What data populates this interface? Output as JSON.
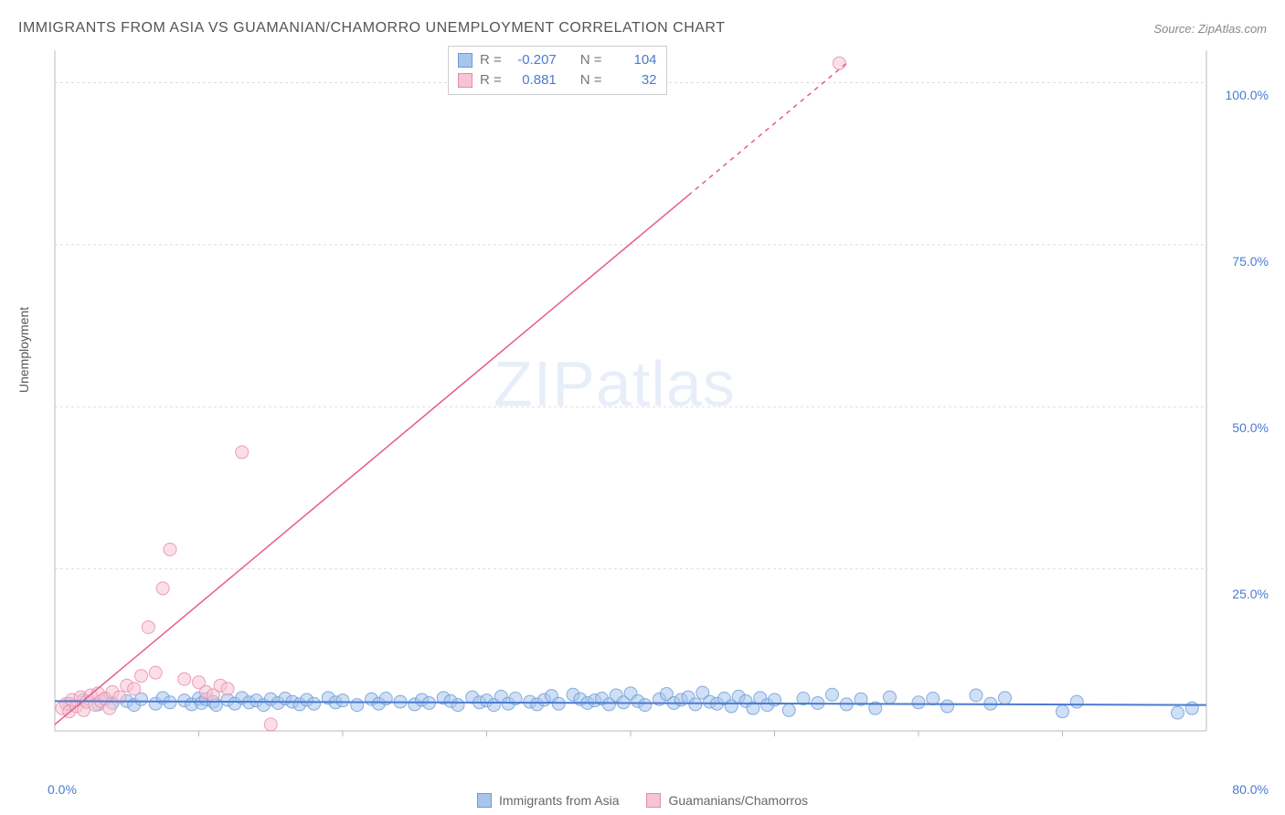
{
  "title": "IMMIGRANTS FROM ASIA VS GUAMANIAN/CHAMORRO UNEMPLOYMENT CORRELATION CHART",
  "source": "Source: ZipAtlas.com",
  "ylabel": "Unemployment",
  "watermark_zip": "ZIP",
  "watermark_atlas": "atlas",
  "chart": {
    "type": "scatter",
    "xlim": [
      0,
      80
    ],
    "ylim": [
      0,
      105
    ],
    "x_ticks": [
      0,
      80
    ],
    "x_tick_labels": [
      "0.0%",
      "80.0%"
    ],
    "y_ticks": [
      25,
      50,
      75,
      100
    ],
    "y_tick_labels": [
      "25.0%",
      "50.0%",
      "75.0%",
      "100.0%"
    ],
    "minor_x_ticks": [
      10,
      20,
      30,
      40,
      50,
      60,
      70
    ],
    "background_color": "#ffffff",
    "grid_color": "#dddddd",
    "axis_color": "#bbbbbb",
    "tick_label_color": "#4a7bd0",
    "series": [
      {
        "name": "Immigrants from Asia",
        "label": "Immigrants from Asia",
        "color_fill": "#a8c5ec",
        "color_stroke": "#6b9bd8",
        "marker_radius": 7,
        "marker_opacity": 0.55,
        "trend": {
          "x1": 0,
          "y1": 4.6,
          "x2": 80,
          "y2": 4.0,
          "color": "#4a7bd0",
          "width": 2
        },
        "R": "-0.207",
        "N": "104",
        "points": [
          [
            1,
            4.2
          ],
          [
            2,
            4.8
          ],
          [
            3,
            4.1
          ],
          [
            3.5,
            5.0
          ],
          [
            4,
            4.3
          ],
          [
            5,
            4.6
          ],
          [
            5.5,
            4.0
          ],
          [
            6,
            4.9
          ],
          [
            7,
            4.2
          ],
          [
            7.5,
            5.1
          ],
          [
            8,
            4.4
          ],
          [
            9,
            4.7
          ],
          [
            9.5,
            4.1
          ],
          [
            10,
            5.0
          ],
          [
            10.2,
            4.3
          ],
          [
            10.5,
            4.9
          ],
          [
            11,
            4.5
          ],
          [
            11.2,
            4.0
          ],
          [
            12,
            4.8
          ],
          [
            12.5,
            4.2
          ],
          [
            13,
            5.1
          ],
          [
            13.5,
            4.4
          ],
          [
            14,
            4.7
          ],
          [
            14.5,
            4.0
          ],
          [
            15,
            4.9
          ],
          [
            15.5,
            4.3
          ],
          [
            16,
            5.0
          ],
          [
            16.5,
            4.5
          ],
          [
            17,
            4.1
          ],
          [
            17.5,
            4.8
          ],
          [
            18,
            4.2
          ],
          [
            19,
            5.1
          ],
          [
            19.5,
            4.4
          ],
          [
            20,
            4.7
          ],
          [
            21,
            4.0
          ],
          [
            22,
            4.9
          ],
          [
            22.5,
            4.2
          ],
          [
            23,
            5.0
          ],
          [
            24,
            4.5
          ],
          [
            25,
            4.1
          ],
          [
            25.5,
            4.8
          ],
          [
            26,
            4.3
          ],
          [
            27,
            5.1
          ],
          [
            27.5,
            4.6
          ],
          [
            28,
            4.0
          ],
          [
            29,
            5.2
          ],
          [
            29.5,
            4.4
          ],
          [
            30,
            4.7
          ],
          [
            30.5,
            4.0
          ],
          [
            31,
            5.3
          ],
          [
            31.5,
            4.2
          ],
          [
            32,
            5.0
          ],
          [
            33,
            4.5
          ],
          [
            33.5,
            4.1
          ],
          [
            34,
            4.8
          ],
          [
            34.5,
            5.4
          ],
          [
            35,
            4.2
          ],
          [
            36,
            5.6
          ],
          [
            36.5,
            4.9
          ],
          [
            37,
            4.3
          ],
          [
            37.5,
            4.7
          ],
          [
            38,
            5.0
          ],
          [
            38.5,
            4.1
          ],
          [
            39,
            5.5
          ],
          [
            39.5,
            4.4
          ],
          [
            40,
            5.8
          ],
          [
            40.5,
            4.6
          ],
          [
            41,
            4.0
          ],
          [
            42,
            4.9
          ],
          [
            42.5,
            5.7
          ],
          [
            43,
            4.3
          ],
          [
            43.5,
            4.8
          ],
          [
            44,
            5.2
          ],
          [
            44.5,
            4.1
          ],
          [
            45,
            5.9
          ],
          [
            45.5,
            4.5
          ],
          [
            46,
            4.2
          ],
          [
            46.5,
            5.0
          ],
          [
            47,
            3.8
          ],
          [
            47.5,
            5.3
          ],
          [
            48,
            4.6
          ],
          [
            48.5,
            3.5
          ],
          [
            49,
            5.1
          ],
          [
            49.5,
            4.0
          ],
          [
            50,
            4.8
          ],
          [
            51,
            3.2
          ],
          [
            52,
            5.0
          ],
          [
            53,
            4.3
          ],
          [
            54,
            5.6
          ],
          [
            55,
            4.1
          ],
          [
            56,
            4.9
          ],
          [
            57,
            3.5
          ],
          [
            58,
            5.2
          ],
          [
            60,
            4.4
          ],
          [
            61,
            5.0
          ],
          [
            62,
            3.8
          ],
          [
            64,
            5.5
          ],
          [
            65,
            4.2
          ],
          [
            66,
            5.1
          ],
          [
            70,
            3.0
          ],
          [
            71,
            4.5
          ],
          [
            78,
            2.8
          ],
          [
            79,
            3.5
          ]
        ]
      },
      {
        "name": "Guamanians/Chamorros",
        "label": "Guamanians/Chamorros",
        "color_fill": "#f5c5d3",
        "color_stroke": "#e88ba8",
        "marker_radius": 7,
        "marker_opacity": 0.55,
        "trend": {
          "x1": 0,
          "y1": 1,
          "x2": 55,
          "y2": 103,
          "dash_from_x": 44,
          "color": "#e85a8a",
          "width": 1.5
        },
        "R": "0.881",
        "N": "32",
        "points": [
          [
            0.5,
            3.5
          ],
          [
            0.8,
            4.2
          ],
          [
            1.0,
            3.0
          ],
          [
            1.2,
            4.8
          ],
          [
            1.5,
            3.8
          ],
          [
            1.8,
            5.2
          ],
          [
            2.0,
            3.2
          ],
          [
            2.2,
            4.5
          ],
          [
            2.5,
            5.5
          ],
          [
            2.8,
            4.0
          ],
          [
            3.0,
            5.8
          ],
          [
            3.2,
            4.6
          ],
          [
            3.5,
            5.0
          ],
          [
            3.8,
            3.5
          ],
          [
            4.0,
            6.0
          ],
          [
            4.5,
            5.2
          ],
          [
            5.0,
            7.0
          ],
          [
            5.5,
            6.5
          ],
          [
            6.0,
            8.5
          ],
          [
            6.5,
            16.0
          ],
          [
            7.0,
            9.0
          ],
          [
            7.5,
            22.0
          ],
          [
            8.0,
            28.0
          ],
          [
            9.0,
            8.0
          ],
          [
            10.0,
            7.5
          ],
          [
            10.5,
            6.0
          ],
          [
            11.0,
            5.5
          ],
          [
            11.5,
            7.0
          ],
          [
            12.0,
            6.5
          ],
          [
            13.0,
            43.0
          ],
          [
            15.0,
            1.0
          ],
          [
            54.5,
            103.0
          ]
        ]
      }
    ]
  },
  "legend": {
    "series1_label": "Immigrants from Asia",
    "series2_label": "Guamanians/Chamorros"
  },
  "stats": {
    "r_label": "R =",
    "n_label": "N =",
    "row1_r": "-0.207",
    "row1_n": "104",
    "row2_r": "0.881",
    "row2_n": "32"
  },
  "colors": {
    "blue_fill": "#a8c5ec",
    "blue_stroke": "#6b9bd8",
    "pink_fill": "#f5c5d3",
    "pink_stroke": "#e88ba8"
  }
}
